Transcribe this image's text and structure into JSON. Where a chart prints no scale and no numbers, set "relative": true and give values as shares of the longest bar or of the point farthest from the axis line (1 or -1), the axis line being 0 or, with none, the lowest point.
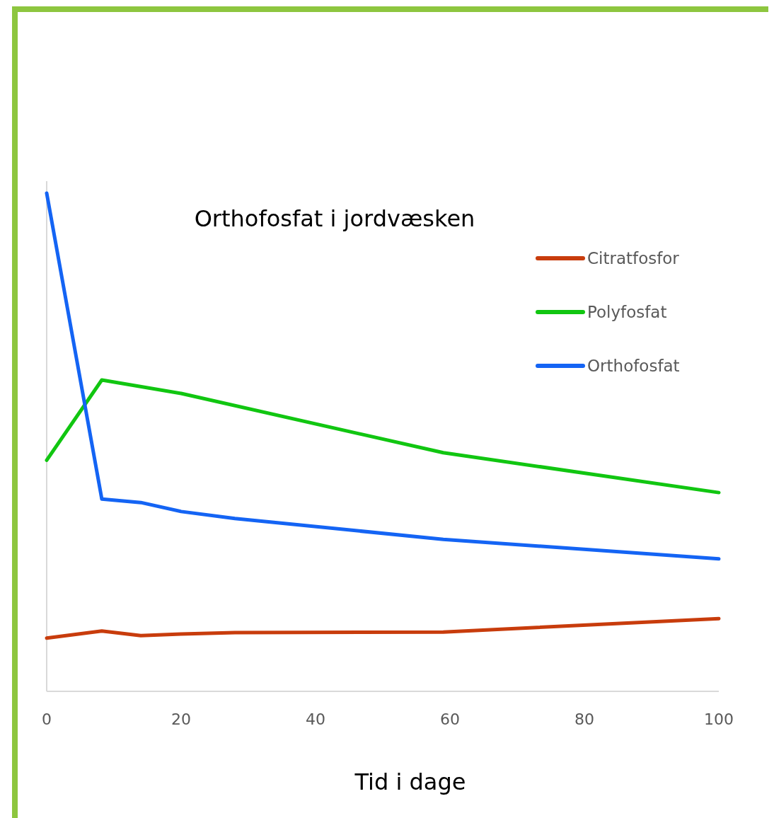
{
  "chart_data": {
    "type": "line",
    "title": "Orthofosfat i jordvæsken",
    "xlabel": "Tid i dage",
    "relative": true,
    "xlim": [
      0,
      100
    ],
    "xticks": [
      0,
      20,
      40,
      60,
      80,
      100
    ],
    "legend": "top right",
    "grid": false,
    "marker": "none",
    "line_style": "solid",
    "series": [
      {
        "name": "Citratfosfor",
        "color": "#c83c0c",
        "x": [
          0,
          8.2,
          14,
          20,
          28,
          59,
          100
        ],
        "values": [
          0.107,
          0.121,
          0.112,
          0.115,
          0.118,
          0.119,
          0.146
        ]
      },
      {
        "name": "Polyfosfat",
        "color": "#11c611",
        "x": [
          0,
          8.2,
          20,
          59,
          100
        ],
        "values": [
          0.464,
          0.625,
          0.598,
          0.479,
          0.399
        ]
      },
      {
        "name": "Orthofosfat",
        "color": "#1464f4",
        "x": [
          0,
          8.2,
          14,
          20,
          28,
          59,
          100
        ],
        "values": [
          1,
          0.386,
          0.379,
          0.361,
          0.347,
          0.305,
          0.266
        ]
      }
    ]
  }
}
